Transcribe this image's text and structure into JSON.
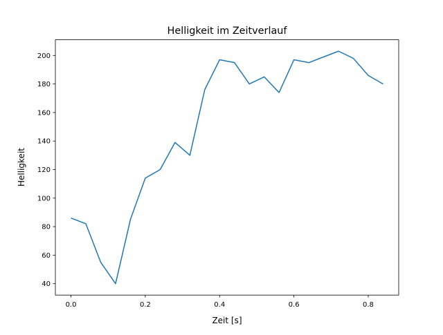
{
  "chart_data": {
    "type": "line",
    "title": "Helligkeit im Zeitverlauf",
    "xlabel": "Zeit [s]",
    "ylabel": "Helligkeit",
    "xlim": [
      -0.042,
      0.882
    ],
    "ylim": [
      32,
      211
    ],
    "xticks": [
      0.0,
      0.2,
      0.4,
      0.6,
      0.8
    ],
    "xtick_labels": [
      "0.0",
      "0.2",
      "0.4",
      "0.6",
      "0.8"
    ],
    "yticks": [
      40,
      60,
      80,
      100,
      120,
      140,
      160,
      180,
      200
    ],
    "ytick_labels": [
      "40",
      "60",
      "80",
      "100",
      "120",
      "140",
      "160",
      "180",
      "200"
    ],
    "grid": false,
    "series": [
      {
        "name": "Helligkeit",
        "color": "#1f77b4",
        "x": [
          0.0,
          0.04,
          0.08,
          0.12,
          0.16,
          0.2,
          0.24,
          0.28,
          0.32,
          0.36,
          0.4,
          0.44,
          0.48,
          0.52,
          0.56,
          0.6,
          0.64,
          0.68,
          0.72,
          0.76,
          0.8,
          0.84
        ],
        "y": [
          86,
          82,
          55,
          40,
          85,
          114,
          120,
          139,
          130,
          176,
          197,
          195,
          180,
          185,
          174,
          197,
          195,
          199,
          203,
          198,
          186,
          180
        ]
      }
    ]
  }
}
